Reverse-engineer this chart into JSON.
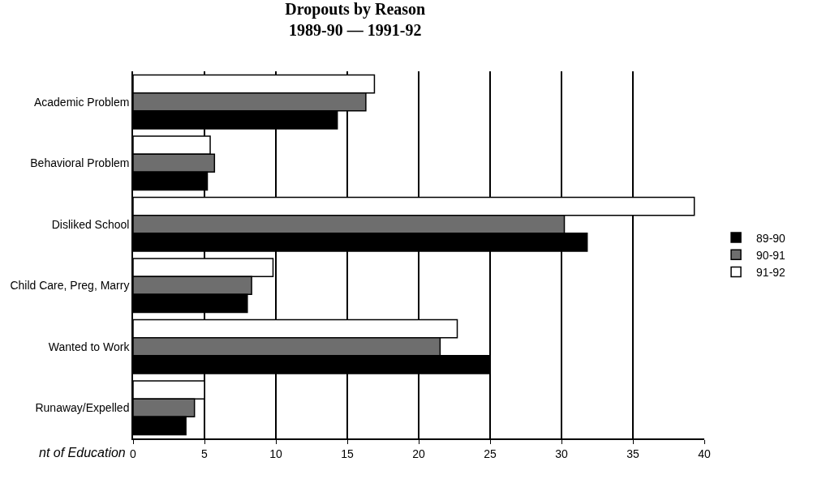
{
  "chart_data": {
    "type": "bar",
    "orientation": "horizontal",
    "title": "Dropouts by Reason\n1989-90 — 1991-92",
    "categories": [
      "Academic Problem",
      "Behavioral Problem",
      "Disliked School",
      "Child Care, Preg, Marry",
      "Wanted to Work",
      "Runaway/Expelled"
    ],
    "series": [
      {
        "name": "89-90",
        "color": "#000000",
        "values": [
          14.3,
          5.2,
          31.8,
          8,
          25,
          3.7
        ]
      },
      {
        "name": "90-91",
        "color": "#6e6e6e",
        "values": [
          16.3,
          5.7,
          30.2,
          8.3,
          21.5,
          4.3
        ]
      },
      {
        "name": "91-92",
        "color": "#ffffff",
        "values": [
          16.9,
          5.4,
          39.3,
          9.8,
          22.7,
          5
        ]
      }
    ],
    "xlim": [
      0,
      40
    ],
    "xticks": [
      0,
      5,
      10,
      15,
      20,
      25,
      30,
      35,
      40
    ],
    "grid": "x",
    "legend": "right",
    "annotations": [
      "nt of Education"
    ]
  }
}
